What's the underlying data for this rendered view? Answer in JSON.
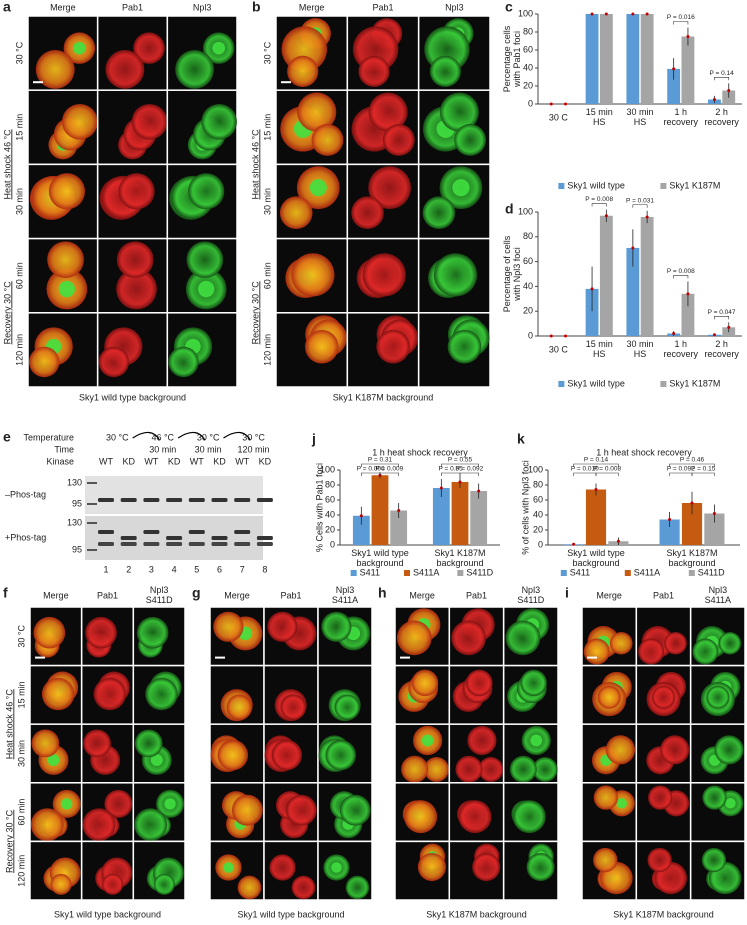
{
  "micrographs": [
    {
      "letter": "a",
      "headers": [
        "Merge",
        "Pab1",
        "Npl3"
      ],
      "rows": [
        "30 °C",
        "15 min",
        "30 min",
        "60 min",
        "120 min"
      ],
      "groups": [
        "Heat shock 46 °C",
        "Recovery 30 °C"
      ],
      "caption": "Sky1 wild type background"
    },
    {
      "letter": "b",
      "headers": [
        "Merge",
        "Pab1",
        "Npl3"
      ],
      "rows": [
        "30 °C",
        "15 min",
        "30 min",
        "60 min",
        "120 min"
      ],
      "groups": [
        "Heat shock 46 °C",
        "Recovery 30 °C"
      ],
      "caption": "Sky1 K187M background"
    },
    {
      "letter": "f",
      "headers": [
        "Merge",
        "Pab1",
        "Npl3\nS411D"
      ],
      "rows": [
        "30 °C",
        "15 min",
        "30 min",
        "60 min",
        "120 min"
      ],
      "groups": [
        "Heat shock 46 °C",
        "Recovery 30 °C"
      ],
      "caption": "Sky1 wild type background"
    },
    {
      "letter": "g",
      "headers": [
        "Merge",
        "Pab1",
        "Npl3\nS411A"
      ],
      "caption": "Sky1 wild type background"
    },
    {
      "letter": "h",
      "headers": [
        "Merge",
        "Pab1",
        "Npl3\nS411D"
      ],
      "caption": "Sky1 K187M background"
    },
    {
      "letter": "i",
      "headers": [
        "Merge",
        "Pab1",
        "Npl3\nS411A"
      ],
      "caption": "Sky1 K187M background"
    }
  ],
  "blot": {
    "letter": "e",
    "row_labels": [
      "Temperature",
      "Time",
      "Kinase"
    ],
    "temperatures": [
      "30 °C",
      "46 °C",
      "30 °C",
      "30 °C"
    ],
    "times": [
      "30 min",
      "30 min",
      "120 min"
    ],
    "kinase": [
      "WT",
      "KD",
      "WT",
      "KD",
      "WT",
      "KD",
      "WT",
      "KD"
    ],
    "conditions": [
      "–Phos-tag",
      "+Phos-tag"
    ],
    "markers": [
      "130",
      "95",
      "130",
      "95"
    ],
    "lanes": [
      "1",
      "2",
      "3",
      "4",
      "5",
      "6",
      "7",
      "8"
    ]
  },
  "chart_data": [
    {
      "type": "bar",
      "letter": "c",
      "ylabel": "Percentage cells\nwith Pab1 foci",
      "categories": [
        "30 C",
        "15 min\nHS",
        "30 min\nHS",
        "1 h\nrecovery",
        "2 h\nrecovery"
      ],
      "series": [
        {
          "name": "Sky1 wild type",
          "color": "#5b9bd5",
          "values": [
            0,
            100,
            100,
            39,
            5
          ],
          "errors": [
            0,
            0,
            0,
            12,
            4
          ]
        },
        {
          "name": "Sky1 K187M",
          "color": "#a5a5a5",
          "values": [
            0,
            100,
            100,
            75,
            15
          ],
          "errors": [
            0,
            0,
            0,
            10,
            8
          ]
        }
      ],
      "annotations": [
        "P = 0.016",
        "P = 0.14"
      ],
      "ylim": [
        0,
        100
      ],
      "yticks": [
        0,
        20,
        40,
        60,
        80,
        100
      ],
      "legend": "bottom"
    },
    {
      "type": "bar",
      "letter": "d",
      "ylabel": "Percentage of cells\nwith Npl3 foci",
      "categories": [
        "30 C",
        "15 min\nHS",
        "30 min\nHS",
        "1 h\nrecovery",
        "2 h\nrecovery"
      ],
      "series": [
        {
          "name": "Sky1 wild type",
          "color": "#5b9bd5",
          "values": [
            0,
            38,
            71,
            2,
            1
          ],
          "errors": [
            0,
            18,
            15,
            2,
            1
          ]
        },
        {
          "name": "Sky1 K187M",
          "color": "#a5a5a5",
          "values": [
            0,
            97,
            96,
            34,
            7
          ],
          "errors": [
            0,
            5,
            5,
            10,
            4
          ]
        }
      ],
      "annotations": [
        "P = 0.008",
        "P = 0.031",
        "P = 0.008",
        "P = 0.047"
      ],
      "ylim": [
        0,
        100
      ],
      "yticks": [
        0,
        20,
        40,
        60,
        80,
        100
      ],
      "legend": "bottom"
    },
    {
      "type": "bar",
      "letter": "j",
      "title": "1 h heat shock recovery",
      "ylabel": "% Cells with Pab1 foci",
      "categories": [
        "Sky1 wild type\nbackground",
        "Sky1 K187M\nbackground"
      ],
      "series": [
        {
          "name": "S411",
          "color": "#5b9bd5",
          "values": [
            39,
            76
          ],
          "errors": [
            12,
            12
          ]
        },
        {
          "name": "S411A",
          "color": "#c55a11",
          "values": [
            93,
            84
          ],
          "errors": [
            4,
            8
          ]
        },
        {
          "name": "S411D",
          "color": "#a5a5a5",
          "values": [
            46,
            72
          ],
          "errors": [
            10,
            10
          ]
        }
      ],
      "annotations": [
        "P = 0.31",
        "P = 0.006",
        "P = 0.009",
        "P = 0.55",
        "P = 0.55",
        "P = 0.092"
      ],
      "ylim": [
        0,
        100
      ],
      "yticks": [
        0,
        20,
        40,
        60,
        80,
        100
      ],
      "legend": "bottom"
    },
    {
      "type": "bar",
      "letter": "k",
      "title": "1 h heat shock recovery",
      "ylabel": "% of cells with Npl3 foci",
      "categories": [
        "Sky1 wild type\nbackground",
        "Sky1 K187M\nbackground"
      ],
      "series": [
        {
          "name": "S411",
          "color": "#5b9bd5",
          "values": [
            1,
            34
          ],
          "errors": [
            1,
            10
          ]
        },
        {
          "name": "S411A",
          "color": "#c55a11",
          "values": [
            74,
            56
          ],
          "errors": [
            8,
            15
          ]
        },
        {
          "name": "S411D",
          "color": "#a5a5a5",
          "values": [
            5,
            42
          ],
          "errors": [
            5,
            12
          ]
        }
      ],
      "annotations": [
        "P = 0.14",
        "P = 0.010",
        "P = 0.008",
        "P = 0.46",
        "P = 0.092",
        "P = 0.15"
      ],
      "ylim": [
        0,
        100
      ],
      "yticks": [
        0,
        20,
        40,
        60,
        80,
        100
      ],
      "legend": "bottom"
    }
  ]
}
